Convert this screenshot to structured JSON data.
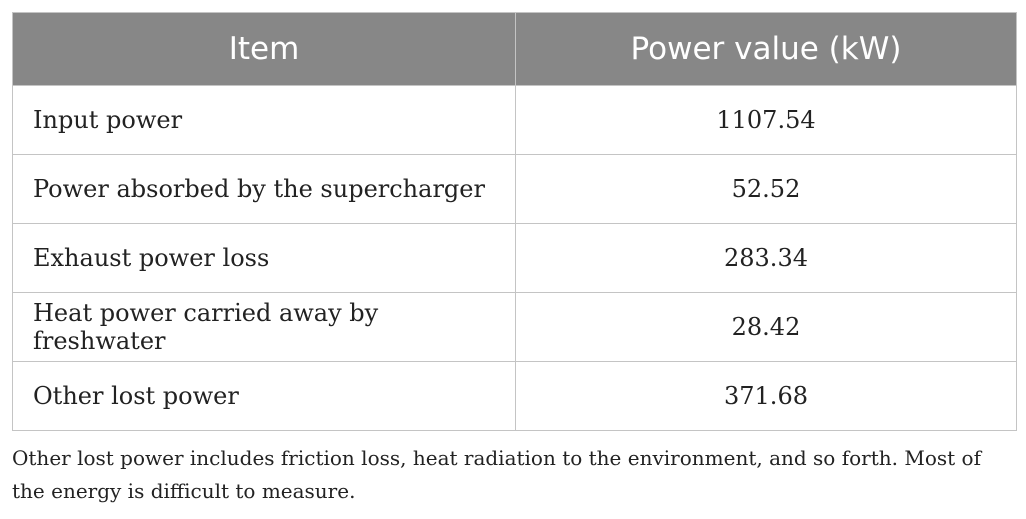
{
  "table": {
    "headers": [
      "Item",
      "Power value (kW)"
    ],
    "rows": [
      {
        "item": "Input power",
        "value": "1107.54"
      },
      {
        "item": "Power absorbed by the supercharger",
        "value": "52.52"
      },
      {
        "item": "Exhaust power loss",
        "value": "283.34"
      },
      {
        "item": "Heat power carried away by freshwater",
        "value": "28.42"
      },
      {
        "item": "Other lost power",
        "value": "371.68"
      }
    ]
  },
  "footnote": "Other lost power includes friction loss, heat radiation to the environment, and so forth. Most of the energy is difficult to measure.",
  "colors": {
    "header_background": "#878787",
    "header_text": "#ffffff",
    "border": "#c4c4c4"
  }
}
